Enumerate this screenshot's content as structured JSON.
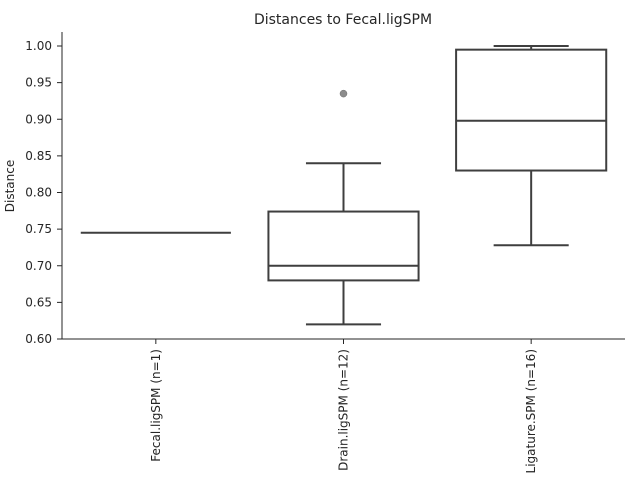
{
  "chart_data": {
    "type": "box",
    "title": "Distances to Fecal.ligSPM",
    "xlabel": "",
    "ylabel": "Distance",
    "ylim": [
      0.6,
      1.02
    ],
    "yticks": [
      "0.60",
      "0.65",
      "0.70",
      "0.75",
      "0.80",
      "0.85",
      "0.90",
      "0.95",
      "1.00"
    ],
    "grid": false,
    "categories": [
      "Fecal.ligSPM (n=1)",
      "Drain.ligSPM (n=12)",
      "Ligature.SPM (n=16)"
    ],
    "boxes": [
      {
        "q1": 0.745,
        "median": 0.745,
        "q3": 0.745,
        "whisker_low": 0.745,
        "whisker_high": 0.745,
        "outliers": []
      },
      {
        "q1": 0.68,
        "median": 0.7,
        "q3": 0.774,
        "whisker_low": 0.62,
        "whisker_high": 0.84,
        "outliers": [
          0.935
        ]
      },
      {
        "q1": 0.83,
        "median": 0.898,
        "q3": 0.995,
        "whisker_low": 0.728,
        "whisker_high": 1.0,
        "outliers": []
      }
    ],
    "colors": {
      "line": "#3f3f3f",
      "outlier": "#8c8c8c",
      "axis": "#262626"
    }
  }
}
